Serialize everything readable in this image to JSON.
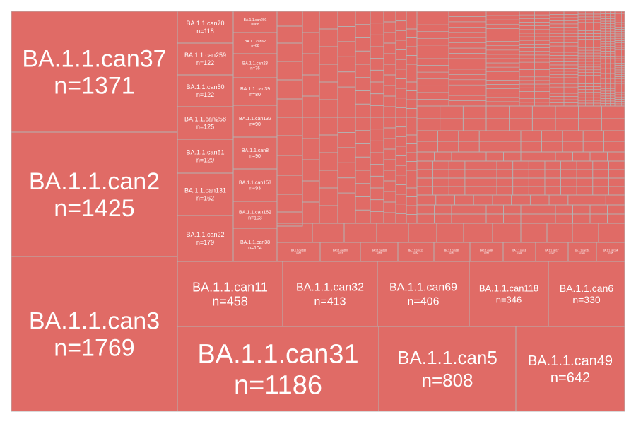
{
  "colors": {
    "tile": "#e06b66",
    "border": "#b3b3b3",
    "text": "#ffffff"
  },
  "chart_data": {
    "type": "treemap",
    "title": "",
    "labelled_tiles": [
      {
        "name": "BA.1.1.can37",
        "n": "n=1371",
        "value": 1371
      },
      {
        "name": "BA.1.1.can2",
        "n": "n=1425",
        "value": 1425
      },
      {
        "name": "BA.1.1.can3",
        "n": "n=1769",
        "value": 1769
      },
      {
        "name": "BA.1.1.can70",
        "n": "n=118",
        "value": 118
      },
      {
        "name": "BA.1.1.can259",
        "n": "n=122",
        "value": 122
      },
      {
        "name": "BA.1.1.can50",
        "n": "n=122",
        "value": 122
      },
      {
        "name": "BA.1.1.can258",
        "n": "n=125",
        "value": 125
      },
      {
        "name": "BA.1.1.can51",
        "n": "n=129",
        "value": 129
      },
      {
        "name": "BA.1.1.can131",
        "n": "n=162",
        "value": 162
      },
      {
        "name": "BA.1.1.can22",
        "n": "n=179",
        "value": 179
      },
      {
        "name": "BA.1.1.can201",
        "n": "n=68",
        "value": 68
      },
      {
        "name": "BA.1.1.can62",
        "n": "n=68",
        "value": 68
      },
      {
        "name": "BA.1.1.can23",
        "n": "n=76",
        "value": 76
      },
      {
        "name": "BA.1.1.can39",
        "n": "n=80",
        "value": 80
      },
      {
        "name": "BA.1.1.can132",
        "n": "n=90",
        "value": 90
      },
      {
        "name": "BA.1.1.can8",
        "n": "n=90",
        "value": 90
      },
      {
        "name": "BA.1.1.can153",
        "n": "n=93",
        "value": 93
      },
      {
        "name": "BA.1.1.can162",
        "n": "n=103",
        "value": 103
      },
      {
        "name": "BA.1.1.can38",
        "n": "n=104",
        "value": 104
      },
      {
        "name": "BA.1.1.can11",
        "n": "n=458",
        "value": 458
      },
      {
        "name": "BA.1.1.can32",
        "n": "n=413",
        "value": 413
      },
      {
        "name": "BA.1.1.can69",
        "n": "n=406",
        "value": 406
      },
      {
        "name": "BA.1.1.can118",
        "n": "n=346",
        "value": 346
      },
      {
        "name": "BA.1.1.can6",
        "n": "n=330",
        "value": 330
      },
      {
        "name": "BA.1.1.can31",
        "n": "n=1186",
        "value": 1186
      },
      {
        "name": "BA.1.1.can5",
        "n": "n=808",
        "value": 808
      },
      {
        "name": "BA.1.1.can49",
        "n": "n=642",
        "value": 642
      }
    ],
    "small_labelled_tiles": [
      {
        "name": "BA.1.1.can188",
        "n": "n=66"
      },
      {
        "name": "BA.1.1.can260",
        "n": "n=57"
      },
      {
        "name": "BA.1.1.can218",
        "n": "n=55"
      },
      {
        "name": "BA.1.1.can113",
        "n": "n=54"
      },
      {
        "name": "BA.1.1.can286",
        "n": "n=52"
      },
      {
        "name": "BA.1.1.can90",
        "n": "n=50"
      },
      {
        "name": "BA.1.1.can18",
        "n": "n=48"
      },
      {
        "name": "BA.1.1.can17",
        "n": "n=47"
      },
      {
        "name": "BA.1.1.can161",
        "n": "n=45"
      },
      {
        "name": "BA.1.1.can164",
        "n": "n=45"
      }
    ]
  }
}
